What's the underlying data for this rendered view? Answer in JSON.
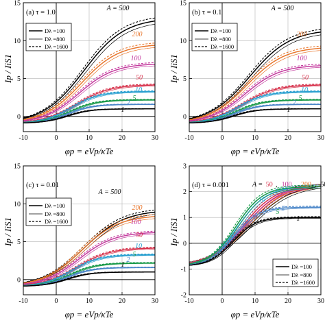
{
  "colors": {
    "500": "#000000",
    "200": "#e8762c",
    "100": "#c43a9e",
    "50": "#d6304a",
    "10": "#2aa0d0",
    "5": "#1a9a4a",
    "2": "#4a86c8",
    "1": "#000000"
  },
  "chart_data": [
    {
      "type": "line",
      "panel_label": "(a) τ = 1.0",
      "x_label": "φp = eVp/κTe",
      "y_label": "Ip / IiS1",
      "xlim": [
        -10,
        30
      ],
      "ylim": [
        -2,
        15
      ],
      "xticks": [
        -10,
        0,
        10,
        20,
        30
      ],
      "yticks": [
        0,
        5,
        10,
        15
      ],
      "grid": true,
      "legend": [
        "Dλ =100",
        "Dλ =800",
        "Dλ =1600"
      ],
      "legend_position": "upper-left",
      "curve_labels": [
        {
          "A": "A = 500",
          "value": 13.0
        },
        {
          "A": "200",
          "value": 10.0
        },
        {
          "A": "100",
          "value": 7.0
        },
        {
          "A": "50",
          "value": 4.6
        },
        {
          "A": "10",
          "value": 3.2
        },
        {
          "A": "5",
          "value": 2.1
        },
        {
          "A": "2",
          "value": 1.6
        },
        {
          "A": "1",
          "value": 1.0
        }
      ],
      "series": [
        {
          "A": 500,
          "value": 13.0
        },
        {
          "A": 200,
          "value": 9.6
        },
        {
          "A": 100,
          "value": 7.0
        },
        {
          "A": 50,
          "value": 4.2
        },
        {
          "A": 10,
          "value": 3.3
        },
        {
          "A": 5,
          "value": 2.2
        },
        {
          "A": 2,
          "value": 1.6
        },
        {
          "A": 1,
          "value": 1.0
        }
      ],
      "y_at_min": -0.9
    },
    {
      "type": "line",
      "panel_label": "(b) τ = 0.1",
      "x_label": "φp = eVp/κTe",
      "y_label": "Ip / IiS1",
      "xlim": [
        -10,
        30
      ],
      "ylim": [
        -2,
        15
      ],
      "xticks": [
        -10,
        0,
        10,
        20,
        30
      ],
      "yticks": [
        0,
        5,
        10,
        15
      ],
      "grid": true,
      "legend": [
        "Dλ =100",
        "Dλ =800",
        "Dλ =1600"
      ],
      "legend_position": "upper-left",
      "curve_labels": [
        {
          "A": "A = 500",
          "value": 12.0
        },
        {
          "A": "200",
          "value": 9.5
        },
        {
          "A": "100",
          "value": 7.0
        },
        {
          "A": "50",
          "value": 4.6
        },
        {
          "A": "10",
          "value": 3.2
        },
        {
          "A": "5",
          "value": 2.1
        },
        {
          "A": "2",
          "value": 1.6
        },
        {
          "A": "1",
          "value": 1.0
        }
      ],
      "series": [
        {
          "A": 500,
          "value": 11.5
        },
        {
          "A": 200,
          "value": 9.2
        },
        {
          "A": 100,
          "value": 6.8
        },
        {
          "A": 50,
          "value": 4.2
        },
        {
          "A": 10,
          "value": 3.3
        },
        {
          "A": 5,
          "value": 2.2
        },
        {
          "A": 2,
          "value": 1.6
        },
        {
          "A": 1,
          "value": 1.0
        }
      ],
      "y_at_min": -0.9
    },
    {
      "type": "line",
      "panel_label": "(c) τ = 0.01",
      "x_label": "φp = eVp/κTe",
      "y_label": "Ip / IiS1",
      "xlim": [
        -10,
        30
      ],
      "ylim": [
        -2,
        15
      ],
      "xticks": [
        -10,
        0,
        10,
        20,
        30
      ],
      "yticks": [
        0,
        5,
        10,
        15
      ],
      "grid": true,
      "legend": [
        "Dλ =100",
        "Dλ =800",
        "Dλ =1600"
      ],
      "legend_position": "upper-left",
      "curve_labels": [
        {
          "A": "A = 500",
          "value": 9.6
        },
        {
          "A": "200",
          "value": 8.2
        },
        {
          "A": "100",
          "value": 6.3
        },
        {
          "A": "50",
          "value": 4.4
        },
        {
          "A": "10",
          "value": 3.2
        },
        {
          "A": "5",
          "value": 2.2
        },
        {
          "A": "2",
          "value": 1.6
        },
        {
          "A": "1",
          "value": 1.0
        }
      ],
      "series": [
        {
          "A": 500,
          "value": 9.2
        },
        {
          "A": 200,
          "value": 8.5
        },
        {
          "A": 100,
          "value": 6.3
        },
        {
          "A": 50,
          "value": 4.2
        },
        {
          "A": 10,
          "value": 3.3
        },
        {
          "A": 5,
          "value": 2.2
        },
        {
          "A": 2,
          "value": 1.6
        },
        {
          "A": 1,
          "value": 1.0
        }
      ],
      "y_at_min": -0.9
    },
    {
      "type": "line",
      "panel_label": "(d) τ = 0.001",
      "x_label": "φp = eVp/κTe",
      "y_label": "Ip / IiS1",
      "xlim": [
        -10,
        30
      ],
      "ylim": [
        -2,
        3
      ],
      "xticks": [
        -10,
        0,
        10,
        20,
        30
      ],
      "yticks": [
        -2,
        -1,
        0,
        1,
        2,
        3
      ],
      "grid": true,
      "legend": [
        "Dλ =100",
        "Dλ =800",
        "Dλ =1600"
      ],
      "legend_position": "lower-right",
      "header_labels": [
        "A =",
        "50",
        ",",
        "100",
        ",",
        "200",
        ",",
        "500"
      ],
      "curve_labels": [
        {
          "A": "10",
          "value": 2.1
        },
        {
          "A": "2",
          "value": 1.55
        },
        {
          "A": "5",
          "value": 1.75
        },
        {
          "A": "1",
          "value": 0.85
        }
      ],
      "series": [
        {
          "A": 500,
          "value": 2.3
        },
        {
          "A": 200,
          "value": 2.28
        },
        {
          "A": 100,
          "value": 2.26
        },
        {
          "A": 50,
          "value": 2.24
        },
        {
          "A": 10,
          "value": 2.2
        },
        {
          "A": 5,
          "value": 2.2
        },
        {
          "A": 2,
          "value": 1.4
        },
        {
          "A": 1,
          "value": 1.0
        }
      ],
      "y_at_min": -0.9
    }
  ]
}
